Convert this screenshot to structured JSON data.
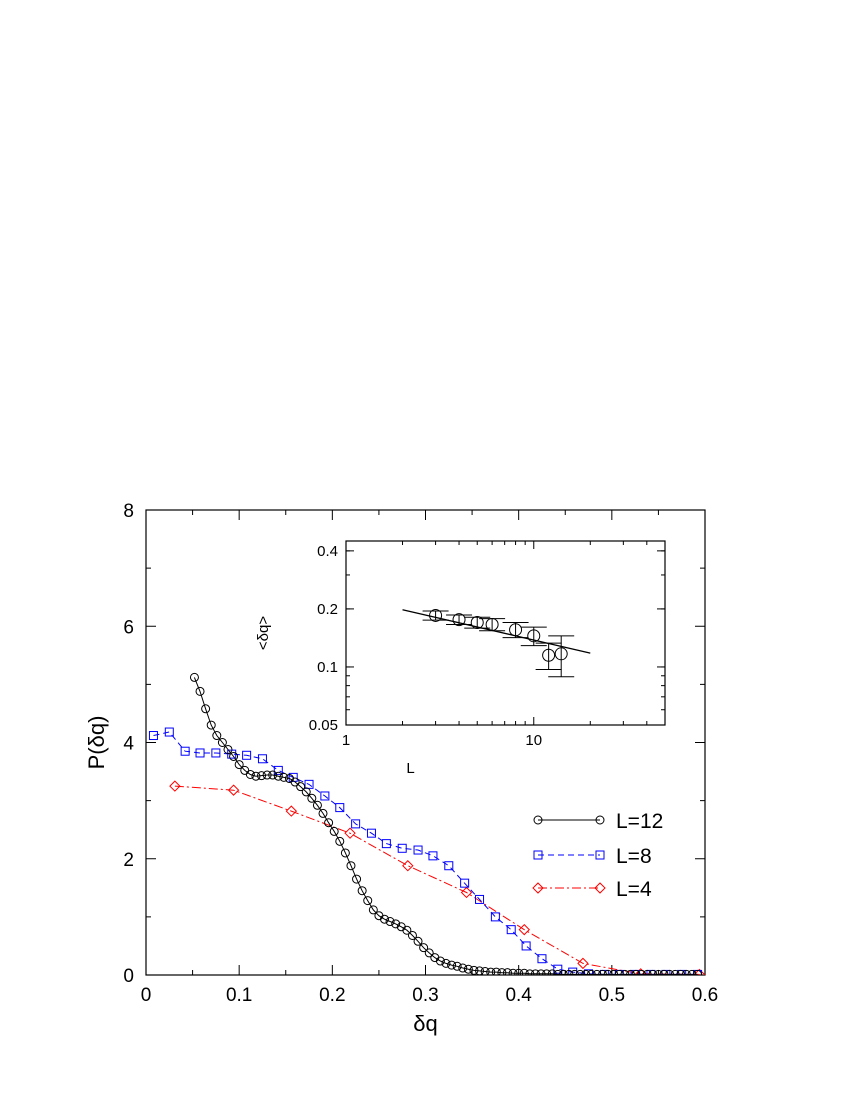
{
  "chart_data": [
    {
      "type": "line",
      "title": "",
      "xlabel": "δq",
      "ylabel": "P(δq)",
      "xlim": [
        0,
        0.6
      ],
      "ylim": [
        0,
        8
      ],
      "x_ticks": [
        "0",
        "0.1",
        "0.2",
        "0.3",
        "0.4",
        "0.5",
        "0.6"
      ],
      "y_ticks": [
        "0",
        "2",
        "4",
        "6",
        "8"
      ],
      "legend_position": "right",
      "grid": false,
      "series": [
        {
          "name": "L=12",
          "marker": "circle",
          "line_style": "solid",
          "color": "#000000",
          "x": [
            0.052,
            0.058,
            0.064,
            0.07,
            0.076,
            0.082,
            0.088,
            0.094,
            0.1,
            0.106,
            0.112,
            0.118,
            0.124,
            0.13,
            0.136,
            0.142,
            0.148,
            0.154,
            0.16,
            0.166,
            0.172,
            0.178,
            0.184,
            0.19,
            0.196,
            0.202,
            0.208,
            0.214,
            0.22,
            0.226,
            0.232,
            0.238,
            0.244,
            0.25,
            0.256,
            0.262,
            0.268,
            0.274,
            0.28,
            0.286,
            0.292,
            0.298,
            0.304,
            0.31,
            0.316,
            0.322,
            0.328,
            0.334,
            0.34,
            0.346,
            0.352,
            0.358,
            0.364,
            0.37,
            0.376,
            0.382,
            0.388,
            0.394,
            0.4,
            0.406,
            0.412,
            0.418,
            0.424,
            0.43,
            0.436,
            0.442,
            0.448,
            0.454,
            0.46,
            0.466,
            0.472,
            0.478,
            0.484,
            0.49,
            0.496,
            0.502,
            0.508,
            0.514,
            0.52,
            0.526,
            0.532,
            0.538,
            0.544,
            0.55,
            0.556,
            0.562,
            0.568,
            0.574,
            0.58,
            0.586,
            0.592
          ],
          "y": [
            5.12,
            4.88,
            4.58,
            4.3,
            4.12,
            4.0,
            3.88,
            3.76,
            3.62,
            3.52,
            3.45,
            3.42,
            3.43,
            3.44,
            3.44,
            3.42,
            3.4,
            3.38,
            3.32,
            3.24,
            3.15,
            3.04,
            2.92,
            2.78,
            2.62,
            2.47,
            2.3,
            2.1,
            1.88,
            1.65,
            1.45,
            1.28,
            1.12,
            1.02,
            0.96,
            0.92,
            0.88,
            0.83,
            0.77,
            0.68,
            0.58,
            0.47,
            0.38,
            0.3,
            0.24,
            0.2,
            0.17,
            0.15,
            0.12,
            0.1,
            0.08,
            0.07,
            0.06,
            0.05,
            0.05,
            0.04,
            0.04,
            0.03,
            0.03,
            0.03,
            0.02,
            0.02,
            0.02,
            0.02,
            0.02,
            0.01,
            0.01,
            0.01,
            0.01,
            0.01,
            0.01,
            0.01,
            0.01,
            0.01,
            0.01,
            0.01,
            0.01,
            0.01,
            0.01,
            0.01,
            0.01,
            0.01,
            0.01,
            0.01,
            0.01,
            0.01,
            0.01,
            0.01,
            0.01,
            0.01,
            0.01
          ]
        },
        {
          "name": "L=8",
          "marker": "square",
          "line_style": "dashed",
          "color": "#0000ff",
          "x": [
            0.008,
            0.025,
            0.042,
            0.058,
            0.075,
            0.092,
            0.108,
            0.125,
            0.142,
            0.158,
            0.175,
            0.192,
            0.208,
            0.225,
            0.242,
            0.258,
            0.275,
            0.292,
            0.308,
            0.325,
            0.342,
            0.358,
            0.375,
            0.392,
            0.408,
            0.425,
            0.442,
            0.458,
            0.475,
            0.492,
            0.508,
            0.525,
            0.542,
            0.558,
            0.575,
            0.592
          ],
          "y": [
            4.12,
            4.18,
            3.85,
            3.82,
            3.82,
            3.8,
            3.78,
            3.72,
            3.52,
            3.4,
            3.28,
            3.08,
            2.88,
            2.6,
            2.44,
            2.26,
            2.18,
            2.15,
            2.05,
            1.88,
            1.58,
            1.3,
            1.0,
            0.78,
            0.5,
            0.28,
            0.1,
            0.05,
            0.02,
            0.01,
            0.01,
            0.01,
            0.01,
            0.01,
            0.01,
            0.01
          ]
        },
        {
          "name": "L=4",
          "marker": "diamond",
          "line_style": "dashdot",
          "color": "#ff0000",
          "x": [
            0.031,
            0.094,
            0.156,
            0.219,
            0.281,
            0.344,
            0.406,
            0.469,
            0.531,
            0.594
          ],
          "y": [
            3.25,
            3.18,
            2.82,
            2.44,
            1.88,
            1.42,
            0.78,
            0.2,
            0.02,
            0.01
          ]
        }
      ]
    },
    {
      "type": "scatter",
      "title": "",
      "xlabel": "L",
      "ylabel": "<δq>",
      "x_scale": "log",
      "y_scale": "log",
      "xlim": [
        1,
        50
      ],
      "ylim": [
        0.05,
        0.45
      ],
      "x_ticks": [
        "1",
        "10"
      ],
      "y_ticks": [
        "0.05",
        "0.1",
        "0.2",
        "0.4"
      ],
      "grid": false,
      "series": [
        {
          "name": "",
          "marker": "circle",
          "x": [
            3,
            4,
            5,
            6,
            8,
            10,
            12,
            14
          ],
          "y": [
            0.185,
            0.176,
            0.17,
            0.166,
            0.156,
            0.145,
            0.115,
            0.117
          ],
          "err": [
            0.01,
            0.01,
            0.011,
            0.012,
            0.014,
            0.016,
            0.018,
            0.028
          ]
        },
        {
          "name": "",
          "marker": "none",
          "line_style": "solid",
          "x": [
            2,
            20
          ],
          "y": [
            0.198,
            0.118
          ]
        }
      ]
    }
  ]
}
